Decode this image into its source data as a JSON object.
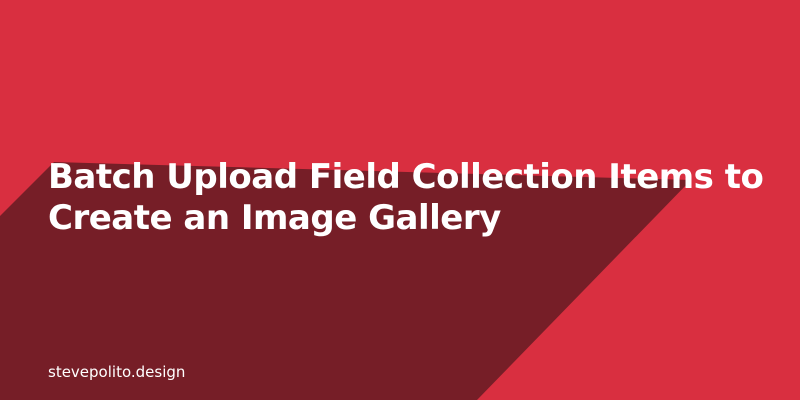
{
  "page": {
    "title_lines": [
      "Batch Upload Field Collection Items to",
      "Create an Image Gallery"
    ],
    "site_url": "stevepolito.design"
  },
  "colors": {
    "background": "#d92f40",
    "shadow": "#761e27",
    "text": "#ffffff"
  }
}
